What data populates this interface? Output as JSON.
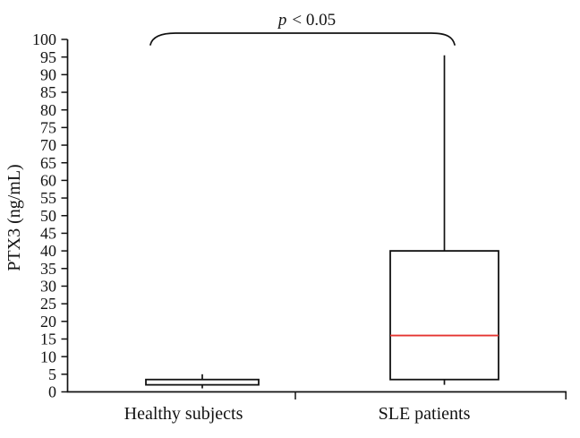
{
  "chart_data": {
    "type": "box",
    "title": "",
    "xlabel": "",
    "ylabel": "PTX3 (ng/mL)",
    "categories": [
      "Healthy subjects",
      "SLE patients"
    ],
    "ylim": [
      0,
      100
    ],
    "ytick_step": 5,
    "grid": false,
    "legend": null,
    "annotation": {
      "full_text": "p < 0.05",
      "p_symbol": "p",
      "comparison": "< 0.05",
      "compares": [
        "Healthy subjects",
        "SLE patients"
      ]
    },
    "series": [
      {
        "name": "Healthy subjects",
        "whisker_low": 1,
        "q1": 2,
        "median": null,
        "q3": 3.5,
        "whisker_high": 5
      },
      {
        "name": "SLE patients",
        "whisker_low": 2,
        "q1": 3.5,
        "median": 16,
        "q3": 40,
        "whisker_high": 95.5
      }
    ],
    "colors": {
      "axis": "#121212",
      "box_stroke": "#121212",
      "box_fill": "#ffffff",
      "median_line": "#e53430",
      "background": "#ffffff"
    }
  }
}
